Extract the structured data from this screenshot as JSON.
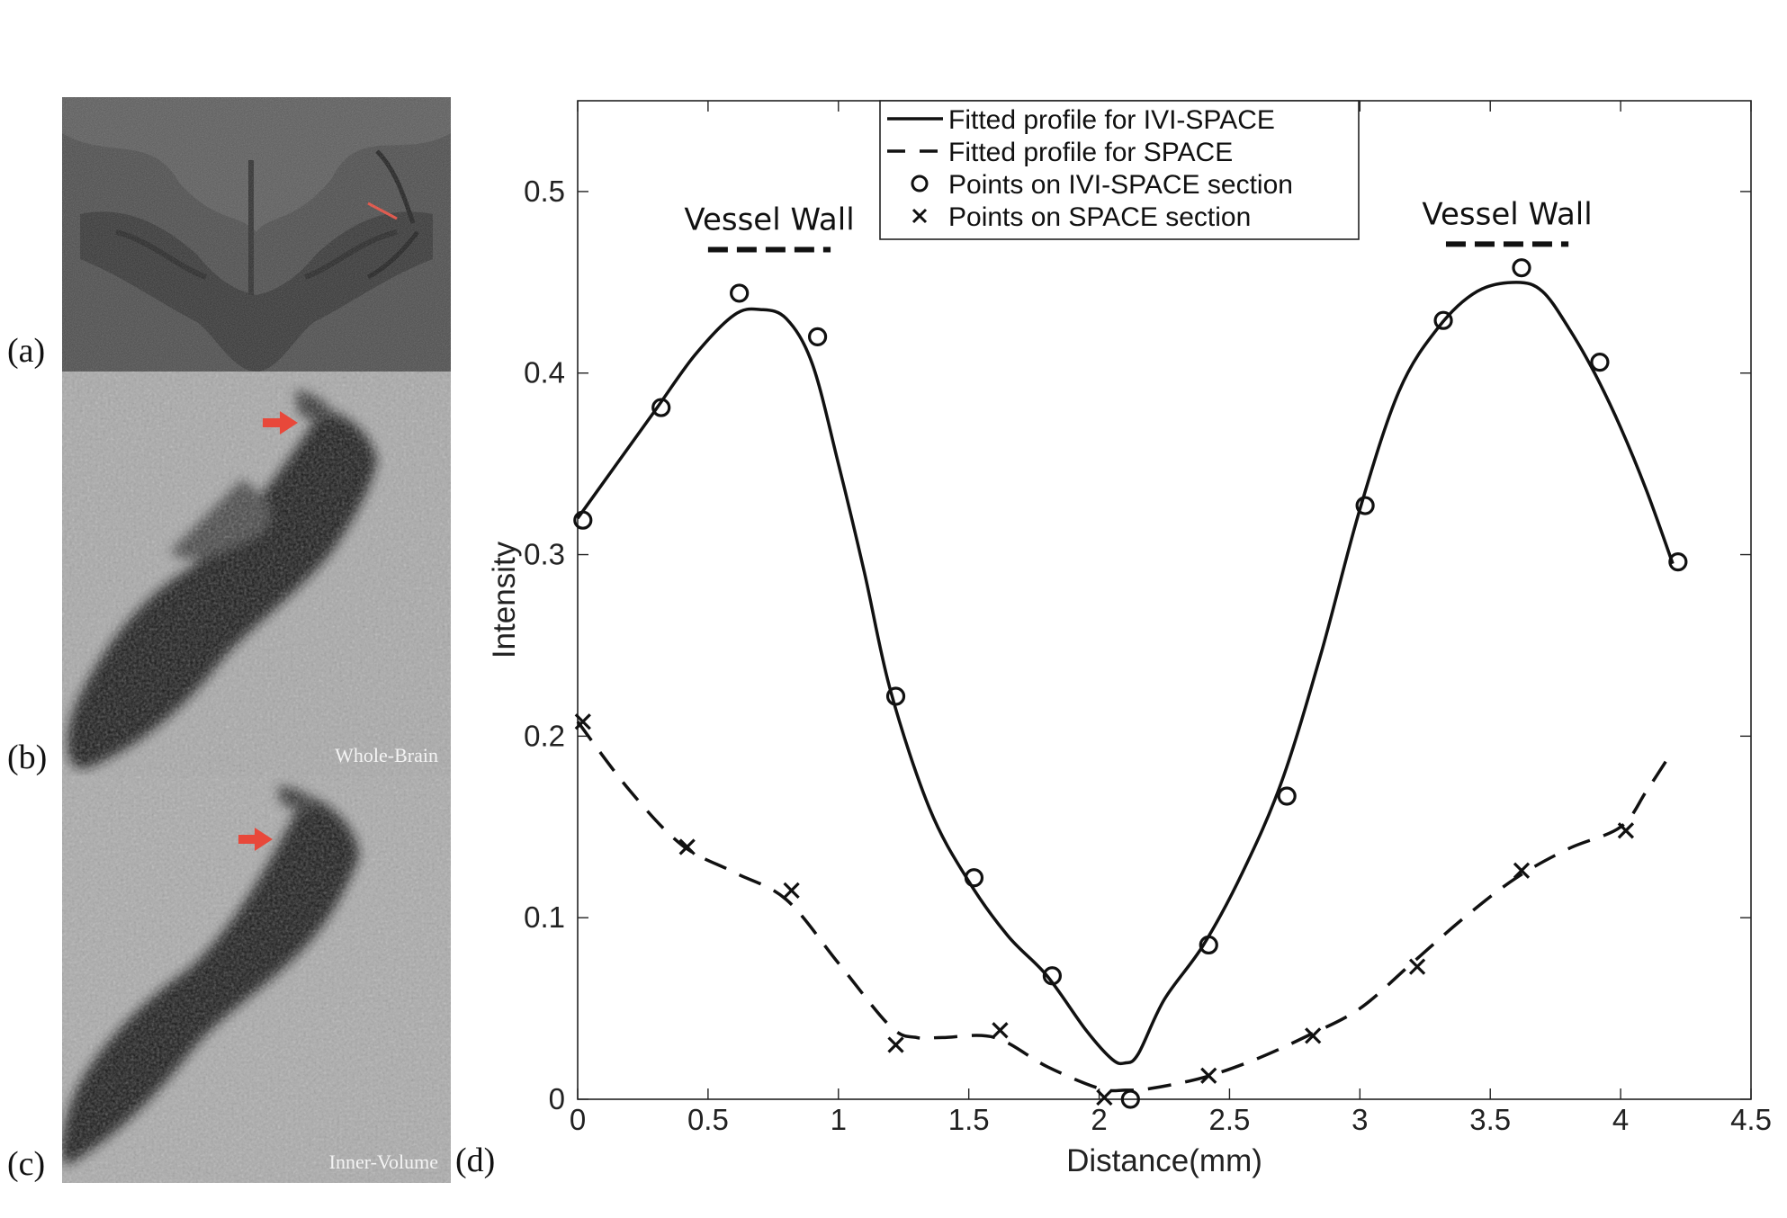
{
  "panels": {
    "a": {
      "letter": "(a)"
    },
    "b": {
      "letter": "(b)",
      "caption": "Whole-Brain"
    },
    "c": {
      "letter": "(c)",
      "caption": "Inner-Volume"
    },
    "d": {
      "letter": "(d)"
    }
  },
  "colors": {
    "marker_red": "#e8483a",
    "line": "#111111"
  },
  "chart_data": {
    "type": "line",
    "title": "",
    "xlabel": "Distance(mm)",
    "ylabel": "Intensity",
    "xlim": [
      0,
      4.5
    ],
    "ylim": [
      0,
      0.55
    ],
    "x_ticks": [
      "0",
      "0.5",
      "1",
      "1.5",
      "2",
      "2.5",
      "3",
      "3.5",
      "4",
      "4.5"
    ],
    "y_ticks": [
      "0",
      "0.1",
      "0.2",
      "0.3",
      "0.4",
      "0.5"
    ],
    "grid": false,
    "legend_position": "top-center",
    "series": [
      {
        "name": "Fitted profile for IVI-SPACE",
        "style": "solid",
        "x": [
          0.0,
          0.15,
          0.3,
          0.45,
          0.6,
          0.7,
          0.8,
          0.9,
          1.0,
          1.1,
          1.2,
          1.35,
          1.5,
          1.65,
          1.8,
          1.95,
          2.05,
          2.1,
          2.15,
          2.25,
          2.4,
          2.55,
          2.7,
          2.85,
          3.0,
          3.15,
          3.3,
          3.45,
          3.6,
          3.7,
          3.8,
          3.9,
          4.0,
          4.1,
          4.2
        ],
        "y": [
          0.32,
          0.35,
          0.38,
          0.41,
          0.432,
          0.435,
          0.43,
          0.405,
          0.35,
          0.29,
          0.225,
          0.16,
          0.12,
          0.09,
          0.068,
          0.038,
          0.022,
          0.02,
          0.025,
          0.055,
          0.085,
          0.125,
          0.175,
          0.245,
          0.325,
          0.39,
          0.425,
          0.445,
          0.45,
          0.445,
          0.425,
          0.4,
          0.37,
          0.335,
          0.295
        ]
      },
      {
        "name": "Fitted profile for SPACE",
        "style": "dashed",
        "x": [
          0.0,
          0.2,
          0.4,
          0.6,
          0.8,
          1.0,
          1.2,
          1.3,
          1.4,
          1.6,
          1.8,
          2.0,
          2.1,
          2.2,
          2.4,
          2.6,
          2.8,
          3.0,
          3.2,
          3.4,
          3.6,
          3.8,
          4.0,
          4.1,
          4.2
        ],
        "y": [
          0.208,
          0.17,
          0.14,
          0.125,
          0.11,
          0.075,
          0.04,
          0.034,
          0.034,
          0.034,
          0.018,
          0.006,
          0.005,
          0.006,
          0.012,
          0.022,
          0.035,
          0.05,
          0.075,
          0.1,
          0.122,
          0.138,
          0.15,
          0.17,
          0.192
        ]
      },
      {
        "name": "Points on IVI-SPACE section",
        "style": "circle",
        "x": [
          0.02,
          0.32,
          0.62,
          0.92,
          1.22,
          1.52,
          1.82,
          2.12,
          2.42,
          2.72,
          3.02,
          3.32,
          3.62,
          3.92,
          4.22
        ],
        "y": [
          0.319,
          0.381,
          0.444,
          0.42,
          0.222,
          0.122,
          0.068,
          0.0,
          0.085,
          0.167,
          0.327,
          0.429,
          0.458,
          0.406,
          0.296
        ]
      },
      {
        "name": "Points on SPACE section",
        "style": "cross",
        "x": [
          0.02,
          0.42,
          0.82,
          1.22,
          1.62,
          2.02,
          2.42,
          2.82,
          3.22,
          3.62,
          4.02
        ],
        "y": [
          0.208,
          0.139,
          0.115,
          0.03,
          0.038,
          0.001,
          0.013,
          0.035,
          0.073,
          0.126,
          0.148
        ]
      }
    ],
    "annotations": [
      {
        "text": "Vessel Wall",
        "x_start": 0.5,
        "x_end": 0.97,
        "y": 0.468
      },
      {
        "text": "Vessel Wall",
        "x_start": 3.33,
        "x_end": 3.8,
        "y": 0.471
      }
    ]
  }
}
